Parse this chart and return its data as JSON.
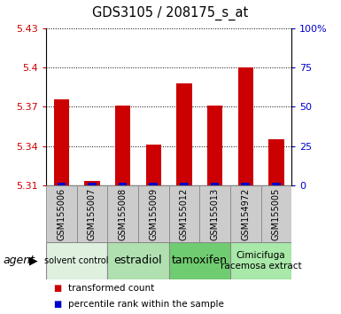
{
  "title": "GDS3105 / 208175_s_at",
  "samples": [
    "GSM155006",
    "GSM155007",
    "GSM155008",
    "GSM155009",
    "GSM155012",
    "GSM155013",
    "GSM154972",
    "GSM155005"
  ],
  "red_values": [
    5.376,
    5.313,
    5.371,
    5.341,
    5.388,
    5.371,
    5.4,
    5.345
  ],
  "blue_values": [
    1.0,
    1.0,
    1.0,
    1.0,
    1.0,
    1.0,
    1.0,
    1.0
  ],
  "ymin": 5.31,
  "ymax": 5.43,
  "yticks": [
    5.31,
    5.34,
    5.37,
    5.4,
    5.43
  ],
  "ytick_labels": [
    "5.31",
    "5.34",
    "5.37",
    "5.4",
    "5.43"
  ],
  "y2ticks": [
    0,
    25,
    50,
    75,
    100
  ],
  "y2labels": [
    "0",
    "25",
    "50",
    "75",
    "100%"
  ],
  "agent_groups": [
    {
      "label": "solvent control",
      "start": 0,
      "end": 2,
      "color": "#dff0df",
      "fontsize": 7
    },
    {
      "label": "estradiol",
      "start": 2,
      "end": 4,
      "color": "#b0e0b0",
      "fontsize": 9
    },
    {
      "label": "tamoxifen",
      "start": 4,
      "end": 6,
      "color": "#70cc70",
      "fontsize": 9
    },
    {
      "label": "Cimicifuga\nracemosa extract",
      "start": 6,
      "end": 8,
      "color": "#a8e8a8",
      "fontsize": 7.5
    }
  ],
  "bar_width": 0.5,
  "white_bg": "#ffffff",
  "gray_bg": "#d0d0d0",
  "legend_red": "transformed count",
  "legend_blue": "percentile rank within the sample",
  "xlabel_agent": "agent",
  "red_color": "#cc0000",
  "blue_color": "#0000cc",
  "tick_label_bg": "#cccccc",
  "grid_color": "#000000",
  "border_color": "#888888"
}
